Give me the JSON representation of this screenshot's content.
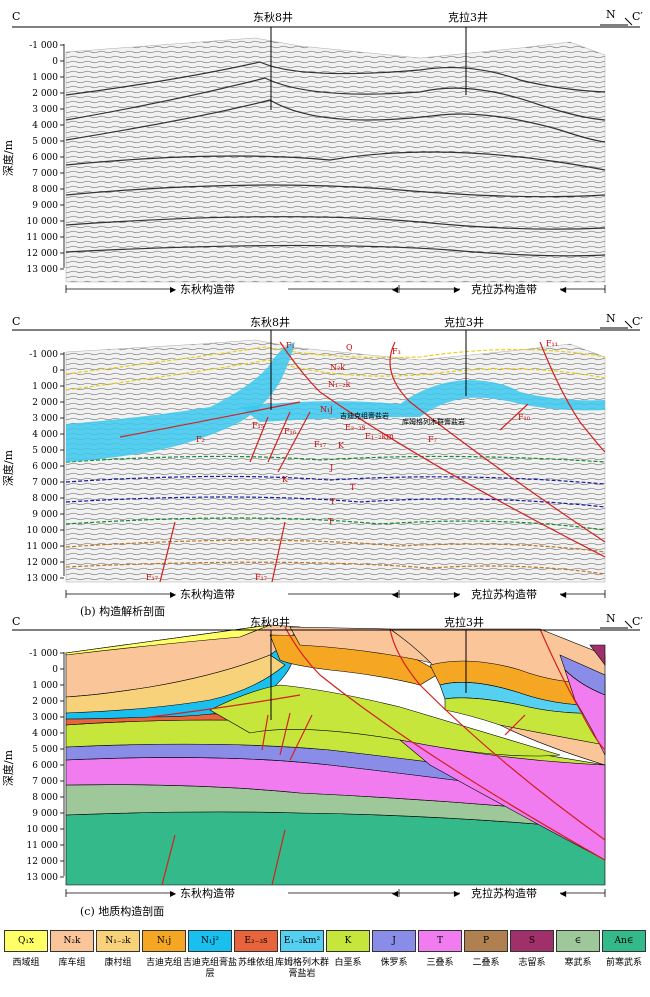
{
  "panels": [
    {
      "id": "a",
      "left_letter": "C",
      "right_letter": "C′",
      "north": "N",
      "well_1": "东秋8井",
      "well_2": "克拉3井",
      "zone_1": "东秋构造带",
      "zone_2": "克拉苏构造带",
      "caption": ""
    },
    {
      "id": "b",
      "left_letter": "C",
      "right_letter": "C′",
      "north": "N",
      "well_1": "东秋8井",
      "well_2": "克拉3井",
      "zone_1": "东秋构造带",
      "zone_2": "克拉苏构造带",
      "caption": "(b) 构造解析剖面"
    },
    {
      "id": "c",
      "left_letter": "C",
      "right_letter": "C′",
      "north": "N",
      "well_1": "东秋8井",
      "well_2": "克拉3井",
      "zone_1": "东秋构造带",
      "zone_2": "克拉苏构造带",
      "caption": "(c) 地质构造剖面"
    }
  ],
  "y_axis": {
    "label": "深度/m",
    "ticks": [
      "-1 000",
      "0",
      "1 000",
      "2 000",
      "3 000",
      "4 000",
      "5 000",
      "6 000",
      "7 000",
      "8 000",
      "9 000",
      "10 000",
      "11 000",
      "12 000",
      "13 000"
    ]
  },
  "annotations_b": {
    "Q": "Q",
    "N2k": "N₂k",
    "N12k": "N₁₋₂k",
    "N1j": "N₁j",
    "Jidike": "吉迪克组膏盐岩",
    "E23s": "E₂₋₃s",
    "E12km": "E₁₋₂km",
    "Kumugeliemu": "库姆格列木群膏盐岩",
    "K1": "K",
    "K2": "K",
    "J": "J",
    "T1": "T",
    "T2": "T",
    "T3": "T",
    "F1": "F₁",
    "F2": "F₂",
    "F3": "F₃",
    "F7": "F₇",
    "F10": "F₁₀",
    "F11": "F₁₁",
    "F15": "F₁₅",
    "F16": "F₁₆",
    "F17a": "F₁₇",
    "F17b": "F₁₇",
    "F17c": "F₁₇"
  },
  "legend": [
    {
      "code": "Q₁x",
      "name": "西域组",
      "color": "#ffff66"
    },
    {
      "code": "N₂k",
      "name": "库车组",
      "color": "#fbc59a"
    },
    {
      "code": "N₁₋₂k",
      "name": "康村组",
      "color": "#f7d27a"
    },
    {
      "code": "N₁j",
      "name": "吉迪克组",
      "color": "#f5a623"
    },
    {
      "code": "N₁j²",
      "name": "吉迪克组膏盐层",
      "color": "#19c0ef"
    },
    {
      "code": "E₂₋₃s",
      "name": "苏维依组",
      "color": "#e8643c"
    },
    {
      "code": "E₁₋₂km²",
      "name": "库姆格列木群膏盐岩",
      "color": "#55d0f0"
    },
    {
      "code": "K",
      "name": "白垩系",
      "color": "#c6e63c"
    },
    {
      "code": "J",
      "name": "侏罗系",
      "color": "#8a8de8"
    },
    {
      "code": "T",
      "name": "三叠系",
      "color": "#f07cf0"
    },
    {
      "code": "P",
      "name": "二叠系",
      "color": "#b08050"
    },
    {
      "code": "S",
      "name": "志留系",
      "color": "#a0306a"
    },
    {
      "code": "∈",
      "name": "寒武系",
      "color": "#9ec89a"
    },
    {
      "code": "An∈",
      "name": "前寒武系",
      "color": "#33b98a"
    }
  ],
  "colors": {
    "fault": "#d42020",
    "salt": "#3ac8ee"
  }
}
